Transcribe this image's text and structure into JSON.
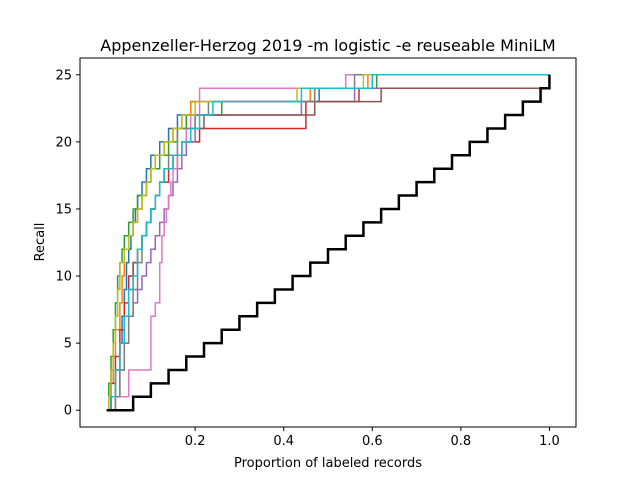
{
  "chart_data": {
    "type": "line",
    "title": "Appenzeller-Herzog 2019 -m logistic -e reuseable MiniLM",
    "xlabel": "Proportion of labeled records",
    "ylabel": "Recall",
    "xlim": [
      -0.06,
      1.06
    ],
    "ylim": [
      -1.25,
      26.25
    ],
    "xticks": [
      {
        "value": 0.2,
        "label": "0.2"
      },
      {
        "value": 0.4,
        "label": "0.4"
      },
      {
        "value": 0.6,
        "label": "0.6"
      },
      {
        "value": 0.8,
        "label": "0.8"
      },
      {
        "value": 1.0,
        "label": "1.0"
      }
    ],
    "yticks": [
      {
        "value": 0,
        "label": "0"
      },
      {
        "value": 5,
        "label": "5"
      },
      {
        "value": 10,
        "label": "10"
      },
      {
        "value": 15,
        "label": "15"
      },
      {
        "value": 20,
        "label": "20"
      },
      {
        "value": 25,
        "label": "25"
      }
    ],
    "grid": false,
    "step": true,
    "colors": [
      "#1f77b4",
      "#ff7f0e",
      "#2ca02c",
      "#d62728",
      "#9467bd",
      "#8c564b",
      "#e377c2",
      "#7f7f7f",
      "#bcbd22",
      "#17becf"
    ],
    "series": [
      {
        "color": "#1f77b4",
        "x": [
          0,
          0.01,
          0.02,
          0.03,
          0.035,
          0.04,
          0.045,
          0.05,
          0.055,
          0.06,
          0.065,
          0.07,
          0.08,
          0.09,
          0.1,
          0.12,
          0.14,
          0.16,
          0.19,
          0.3,
          0.48,
          0.6,
          1.0
        ],
        "y": [
          0,
          1,
          3,
          5,
          7,
          9,
          11,
          12,
          13,
          14,
          15,
          16,
          17,
          18,
          19,
          20,
          21,
          22,
          23,
          23,
          24,
          25,
          25
        ]
      },
      {
        "color": "#ff7f0e",
        "x": [
          0,
          0.01,
          0.015,
          0.02,
          0.03,
          0.035,
          0.04,
          0.05,
          0.06,
          0.07,
          0.08,
          0.09,
          0.1,
          0.11,
          0.13,
          0.15,
          0.17,
          0.19,
          0.22,
          0.46,
          0.59,
          1.0
        ],
        "y": [
          0,
          2,
          4,
          6,
          8,
          10,
          12,
          13,
          14,
          15,
          16,
          17,
          18,
          19,
          20,
          21,
          22,
          23,
          23,
          24,
          25,
          25
        ]
      },
      {
        "color": "#2ca02c",
        "x": [
          0,
          0.005,
          0.01,
          0.015,
          0.02,
          0.025,
          0.03,
          0.035,
          0.04,
          0.05,
          0.06,
          0.07,
          0.09,
          0.1,
          0.12,
          0.14,
          0.16,
          0.18,
          0.26,
          0.47,
          0.61,
          1.0
        ],
        "y": [
          0,
          2,
          4,
          6,
          8,
          10,
          11,
          12,
          13,
          14,
          15,
          16,
          17,
          18,
          19,
          20,
          21,
          22,
          23,
          24,
          25,
          25
        ]
      },
      {
        "color": "#d62728",
        "x": [
          0,
          0.01,
          0.02,
          0.03,
          0.04,
          0.05,
          0.06,
          0.07,
          0.08,
          0.09,
          0.1,
          0.11,
          0.12,
          0.14,
          0.16,
          0.18,
          0.21,
          0.45,
          0.57,
          1.0
        ],
        "y": [
          0,
          2,
          4,
          6,
          8,
          10,
          11,
          12,
          13,
          14,
          15,
          16,
          17,
          18,
          19,
          20,
          21,
          23,
          24,
          25
        ]
      },
      {
        "color": "#9467bd",
        "x": [
          0,
          0.01,
          0.03,
          0.04,
          0.05,
          0.06,
          0.07,
          0.08,
          0.09,
          0.1,
          0.11,
          0.12,
          0.13,
          0.14,
          0.15,
          0.16,
          0.17,
          0.18,
          0.2,
          0.44,
          0.56,
          1.0
        ],
        "y": [
          0,
          1,
          3,
          5,
          7,
          8,
          9,
          10,
          11,
          12,
          13,
          14,
          15,
          16,
          17,
          18,
          19,
          20,
          22,
          23,
          24,
          25
        ]
      },
      {
        "color": "#8c564b",
        "x": [
          0,
          0.01,
          0.02,
          0.03,
          0.04,
          0.05,
          0.06,
          0.07,
          0.08,
          0.09,
          0.1,
          0.11,
          0.12,
          0.13,
          0.15,
          0.17,
          0.19,
          0.22,
          0.47,
          0.62,
          1.0
        ],
        "y": [
          0,
          1,
          3,
          5,
          7,
          9,
          11,
          12,
          13,
          14,
          15,
          16,
          17,
          18,
          19,
          20,
          21,
          22,
          23,
          24,
          25
        ]
      },
      {
        "color": "#e377c2",
        "x": [
          0,
          0.02,
          0.05,
          0.09,
          0.1,
          0.11,
          0.12,
          0.125,
          0.13,
          0.135,
          0.14,
          0.145,
          0.15,
          0.16,
          0.17,
          0.18,
          0.19,
          0.21,
          0.54,
          0.63,
          1.0
        ],
        "y": [
          0,
          1,
          3,
          3,
          7,
          8,
          11,
          13,
          14,
          15,
          16,
          17,
          18,
          19,
          20,
          21,
          22,
          24,
          25,
          25,
          25
        ]
      },
      {
        "color": "#7f7f7f",
        "x": [
          0,
          0.02,
          0.03,
          0.04,
          0.05,
          0.06,
          0.07,
          0.08,
          0.09,
          0.1,
          0.11,
          0.12,
          0.13,
          0.14,
          0.16,
          0.2,
          0.23,
          0.47,
          0.56,
          1.0
        ],
        "y": [
          0,
          1,
          3,
          5,
          7,
          9,
          11,
          13,
          14,
          15,
          16,
          17,
          18,
          19,
          21,
          22,
          23,
          24,
          25,
          25
        ]
      },
      {
        "color": "#bcbd22",
        "x": [
          0,
          0.005,
          0.01,
          0.015,
          0.02,
          0.025,
          0.03,
          0.04,
          0.05,
          0.06,
          0.07,
          0.08,
          0.09,
          0.1,
          0.11,
          0.13,
          0.15,
          0.17,
          0.2,
          0.43,
          0.58,
          1.0
        ],
        "y": [
          0,
          1,
          3,
          5,
          7,
          9,
          11,
          12,
          13,
          14,
          15,
          16,
          17,
          18,
          19,
          20,
          21,
          22,
          23,
          24,
          25,
          25
        ]
      },
      {
        "color": "#17becf",
        "x": [
          0,
          0.01,
          0.02,
          0.03,
          0.04,
          0.05,
          0.06,
          0.07,
          0.08,
          0.09,
          0.1,
          0.11,
          0.12,
          0.13,
          0.15,
          0.17,
          0.19,
          0.21,
          0.24,
          0.44,
          0.6,
          1.0
        ],
        "y": [
          0,
          1,
          3,
          5,
          7,
          9,
          10,
          12,
          13,
          14,
          15,
          16,
          17,
          18,
          19,
          20,
          21,
          22,
          23,
          24,
          25,
          25
        ]
      }
    ],
    "baseline": {
      "color": "#000000",
      "x": [
        0,
        0.02,
        0.06,
        0.1,
        0.14,
        0.18,
        0.22,
        0.26,
        0.3,
        0.34,
        0.38,
        0.42,
        0.46,
        0.5,
        0.54,
        0.58,
        0.62,
        0.66,
        0.7,
        0.74,
        0.78,
        0.82,
        0.86,
        0.9,
        0.94,
        0.98,
        1.0
      ],
      "y": [
        0,
        0,
        1,
        2,
        3,
        4,
        5,
        6,
        7,
        8,
        9,
        10,
        11,
        12,
        13,
        14,
        15,
        16,
        17,
        18,
        19,
        20,
        21,
        22,
        23,
        24,
        25
      ]
    }
  }
}
